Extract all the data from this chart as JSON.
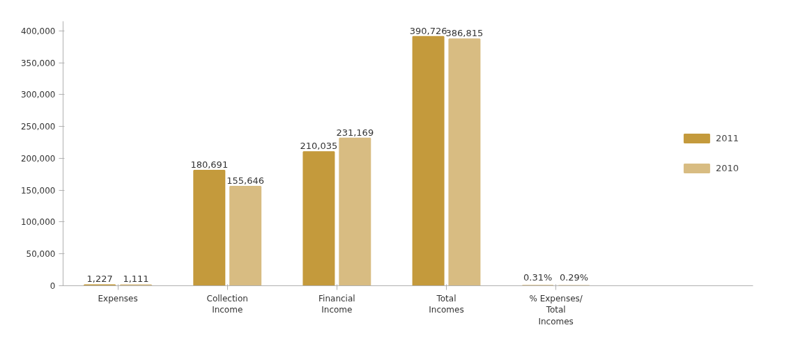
{
  "chart_data": {
    "type": "bar",
    "categories": [
      "Expenses",
      "Collection\nIncome",
      "Financial\nIncome",
      "Total\nIncomes",
      "% Expenses/\nTotal\nIncomes"
    ],
    "series": [
      {
        "name": "2011",
        "color": "#c49a3c",
        "values": [
          1227,
          180691,
          210035,
          390726,
          0.31
        ],
        "value_labels": [
          "1,227",
          "180,691",
          "210,035",
          "390,726",
          "0.31%"
        ]
      },
      {
        "name": "2010",
        "color": "#d8bc82",
        "values": [
          1111,
          155646,
          231169,
          386815,
          0.29
        ],
        "value_labels": [
          "1,111",
          "155,646",
          "231,169",
          "386,815",
          "0.29%"
        ]
      }
    ],
    "ylim": [
      0,
      415000
    ],
    "yticks": [
      {
        "value": 0,
        "label": "0"
      },
      {
        "value": 50000,
        "label": "50,000"
      },
      {
        "value": 100000,
        "label": "100,000"
      },
      {
        "value": 150000,
        "label": "150,000"
      },
      {
        "value": 200000,
        "label": "200,000"
      },
      {
        "value": 250000,
        "label": "250,000"
      },
      {
        "value": 300000,
        "label": "300,000"
      },
      {
        "value": 350000,
        "label": "350,000"
      },
      {
        "value": 400000,
        "label": "400,000"
      }
    ],
    "legend": "right",
    "grid": false
  }
}
